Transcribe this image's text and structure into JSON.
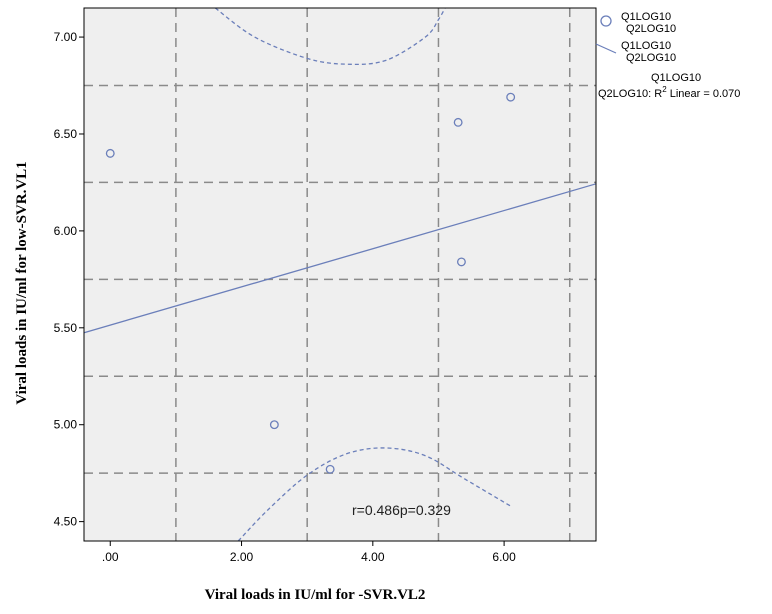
{
  "chart_data": {
    "type": "scatter",
    "xlabel": "Viral loads in IU/ml for -SVR.VL2",
    "ylabel": "Viral loads in IU/ml for low-SVR.VL1",
    "xlim": [
      -0.4,
      7.4
    ],
    "ylim": [
      4.4,
      7.15
    ],
    "x_ticks": [
      0,
      2,
      4,
      6
    ],
    "x_tick_labels": [
      ".00",
      "2.00",
      "4.00",
      "6.00"
    ],
    "y_ticks": [
      4.5,
      5.0,
      5.5,
      6.0,
      6.5,
      7.0
    ],
    "y_tick_labels": [
      "4.50",
      "5.00",
      "5.50",
      "6.00",
      "6.50",
      "7.00"
    ],
    "x_gridlines": [
      1,
      3,
      5,
      7
    ],
    "y_gridlines": [
      4.75,
      5.25,
      5.75,
      6.25,
      6.75
    ],
    "grid": true,
    "points": [
      {
        "x": 0.0,
        "y": 6.4
      },
      {
        "x": 2.5,
        "y": 5.0
      },
      {
        "x": 3.35,
        "y": 4.77
      },
      {
        "x": 5.3,
        "y": 6.56
      },
      {
        "x": 5.35,
        "y": 5.84
      },
      {
        "x": 6.1,
        "y": 6.69
      }
    ],
    "fit_line": {
      "slope": 0.0985,
      "intercept": 5.514
    },
    "ci_upper": [
      {
        "x": 1.6,
        "y": 7.15
      },
      {
        "x": 2.2,
        "y": 7.0
      },
      {
        "x": 3.0,
        "y": 6.89
      },
      {
        "x": 3.6,
        "y": 6.86
      },
      {
        "x": 4.2,
        "y": 6.88
      },
      {
        "x": 4.8,
        "y": 7.0
      },
      {
        "x": 5.0,
        "y": 7.09
      },
      {
        "x": 5.1,
        "y": 7.15
      }
    ],
    "ci_lower": [
      {
        "x": 1.95,
        "y": 4.4
      },
      {
        "x": 2.4,
        "y": 4.56
      },
      {
        "x": 3.0,
        "y": 4.74
      },
      {
        "x": 3.6,
        "y": 4.85
      },
      {
        "x": 4.2,
        "y": 4.88
      },
      {
        "x": 4.8,
        "y": 4.84
      },
      {
        "x": 5.4,
        "y": 4.72
      },
      {
        "x": 6.1,
        "y": 4.58
      }
    ],
    "legend": {
      "position": "top-right",
      "scatter_label_1": "Q1LOG10",
      "scatter_label_2": "Q2LOG10",
      "line_label_1": "Q1LOG10",
      "line_label_2": "Q2LOG10",
      "r2_line_1": "Q1LOG10",
      "r2_line_2_prefix": "Q2LOG10: R",
      "r2_sup": "2",
      "r2_line_2_suffix": " Linear = 0.070"
    },
    "annotation": "r=0.486p=0.329",
    "colors": {
      "plot_bg": "#efefef",
      "grid": "#8a8a8a",
      "series": "#6b7fba"
    }
  }
}
